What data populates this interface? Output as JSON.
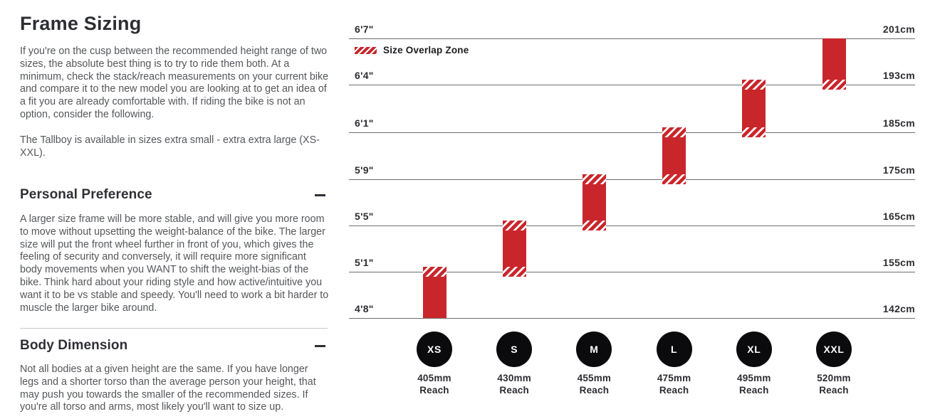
{
  "article": {
    "title": "Frame Sizing",
    "intro_p1": "If you're on the cusp between the recommended height range of two sizes, the absolute best thing is to try to ride them both. At a minimum, check the stack/reach measurements on your current bike and compare it to the new model you are looking at to get an idea of a fit you are already comfortable with. If riding the bike is not an option, consider the following.",
    "intro_p2": "The Tallboy is available in sizes extra small - extra extra large (XS-XXL).",
    "sections": [
      {
        "heading": "Personal Preference",
        "toggle_state": "expanded",
        "body": "A larger size frame will be more stable, and will give you more room to move without upsetting the weight-balance of the bike. The larger size will put the front wheel further in front of you, which gives the feeling of security and conversely, it will require more significant body movements when you WANT to shift the weight-bias of the bike. Think hard about your riding style and how active/intuitive you want it to be vs stable and speedy. You'll need to work a bit harder to muscle the larger bike around."
      },
      {
        "heading": "Body Dimension",
        "toggle_state": "expanded",
        "body": "Not all bodies at a given height are the same. If you have longer legs and a shorter torso than the average person your height, that may push you towards the smaller of the recommended sizes. If you're all torso and arms, most likely you'll want to size up."
      }
    ]
  },
  "chart_data": {
    "type": "bar",
    "variant": "vertical-range-size-chart",
    "legend_label": "Size Overlap Zone",
    "reach_suffix": "Reach",
    "gridlines": [
      {
        "left": "6'7\"",
        "right": "201cm",
        "cm": 201
      },
      {
        "left": "6'4\"",
        "right": "193cm",
        "cm": 193
      },
      {
        "left": "6'1\"",
        "right": "185cm",
        "cm": 185
      },
      {
        "left": "5'9\"",
        "right": "175cm",
        "cm": 175
      },
      {
        "left": "5'5\"",
        "right": "165cm",
        "cm": 165
      },
      {
        "left": "5'1\"",
        "right": "155cm",
        "cm": 155
      },
      {
        "left": "4'8\"",
        "right": "142cm",
        "cm": 142
      }
    ],
    "sizes": [
      {
        "label": "XS",
        "reach": "405mm",
        "top_line": 5,
        "bottom_line": 6,
        "overlap_top": true,
        "overlap_bottom": false,
        "height_range_cm": [
          142,
          155
        ]
      },
      {
        "label": "S",
        "reach": "430mm",
        "top_line": 4,
        "bottom_line": 5,
        "overlap_top": true,
        "overlap_bottom": true,
        "height_range_cm": [
          155,
          165
        ]
      },
      {
        "label": "M",
        "reach": "455mm",
        "top_line": 3,
        "bottom_line": 4,
        "overlap_top": true,
        "overlap_bottom": true,
        "height_range_cm": [
          165,
          175
        ]
      },
      {
        "label": "L",
        "reach": "475mm",
        "top_line": 2,
        "bottom_line": 3,
        "overlap_top": true,
        "overlap_bottom": true,
        "height_range_cm": [
          175,
          185
        ]
      },
      {
        "label": "XL",
        "reach": "495mm",
        "top_line": 1,
        "bottom_line": 2,
        "overlap_top": true,
        "overlap_bottom": true,
        "height_range_cm": [
          185,
          193
        ]
      },
      {
        "label": "XXL",
        "reach": "520mm",
        "top_line": 0,
        "bottom_line": 1,
        "overlap_top": false,
        "overlap_bottom": true,
        "height_range_cm": [
          193,
          201
        ]
      }
    ],
    "colors": {
      "bar_red": "#c9262b",
      "gridline": "#6e6e6e",
      "circle_black": "#0b0b0d",
      "label_ink": "#2c2d31"
    }
  }
}
